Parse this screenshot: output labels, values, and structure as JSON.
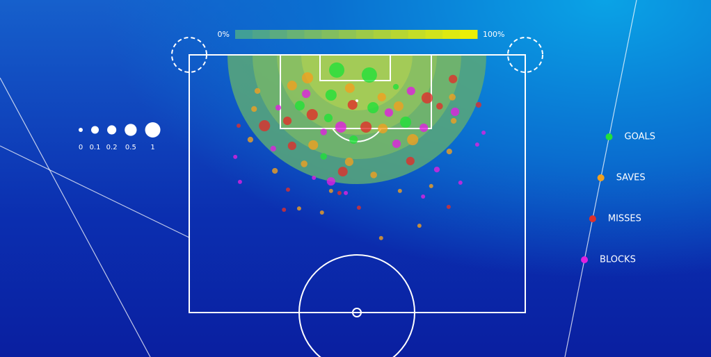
{
  "chart_data": {
    "type": "scatter",
    "xlim": [
      0,
      100
    ],
    "ylim": [
      0,
      100
    ],
    "colorbar": {
      "ticks": [
        {
          "value": 0,
          "label": "0%"
        },
        {
          "value": 100,
          "label": "100%"
        }
      ],
      "colors": [
        "#3a9c9c",
        "#f2f200"
      ]
    },
    "size_legend": [
      0,
      0.1,
      0.2,
      0.5,
      1
    ],
    "series": [
      {
        "name": "GOALS",
        "color": "#22e03a",
        "x": [
          43.9,
          53.6,
          42.2,
          32.9,
          54.7,
          64.4,
          41.4,
          61.5,
          40.0,
          48.9
        ],
        "y": [
          5.9,
          7.8,
          15.6,
          19.7,
          20.5,
          26.1,
          24.5,
          12.4,
          39.4,
          32.9
        ],
        "sizes": [
          1,
          1,
          0.4,
          0.25,
          0.4,
          0.4,
          0.15,
          0.02,
          0.05,
          0.15
        ]
      },
      {
        "name": "SAVES",
        "color": "#f0a020",
        "x": [
          35.2,
          47.8,
          30.6,
          57.3,
          62.3,
          57.6,
          36.9,
          66.5,
          20.3,
          19.3,
          78.3,
          47.6,
          34.2,
          18.2,
          25.5,
          54.9,
          62.7,
          57.1,
          68.5,
          42.2,
          32.7,
          78.7,
          77.4,
          72.0,
          39.5
        ],
        "y": [
          8.9,
          12.9,
          11.9,
          16.4,
          19.9,
          28.6,
          35.0,
          32.9,
          14.0,
          21.0,
          16.4,
          41.5,
          42.3,
          32.9,
          45.0,
          46.6,
          52.8,
          71.1,
          66.3,
          52.8,
          59.6,
          25.6,
          37.5,
          50.9,
          61.2
        ],
        "sizes": [
          0.4,
          0.25,
          0.25,
          0.15,
          0.25,
          0.25,
          0.25,
          0.4,
          0.02,
          0.02,
          0.05,
          0.15,
          0.05,
          0.02,
          0.02,
          0.05,
          0,
          0,
          0,
          0,
          0,
          0.02,
          0.02,
          0,
          0
        ]
      },
      {
        "name": "MISSES",
        "color": "#e0302a",
        "x": [
          78.5,
          70.8,
          48.6,
          52.6,
          36.6,
          22.4,
          29.2,
          30.6,
          45.7,
          74.5,
          65.8,
          86.1,
          14.7,
          29.4,
          28.2,
          50.5,
          77.2,
          44.7
        ],
        "y": [
          9.4,
          16.7,
          19.4,
          28.0,
          23.2,
          27.5,
          25.6,
          35.3,
          45.3,
          19.9,
          41.2,
          19.4,
          27.5,
          52.3,
          60.1,
          59.3,
          59.0,
          53.6
        ],
        "sizes": [
          0.15,
          0.4,
          0.25,
          0.4,
          0.4,
          0.4,
          0.15,
          0.15,
          0.25,
          0.05,
          0.15,
          0.02,
          0,
          0,
          0,
          0,
          0,
          0
        ]
      },
      {
        "name": "BLOCKS",
        "color": "#e020e0",
        "x": [
          34.8,
          59.4,
          45.1,
          66.0,
          69.8,
          79.1,
          26.5,
          61.7,
          42.2,
          25.0,
          40.0,
          73.7,
          13.7,
          15.1,
          46.6,
          69.6,
          80.7,
          85.7,
          87.6,
          37.1
        ],
        "y": [
          15.1,
          22.4,
          28.0,
          14.0,
          28.3,
          22.1,
          20.5,
          34.5,
          49.1,
          36.4,
          29.9,
          44.5,
          39.6,
          49.3,
          53.6,
          55.0,
          49.6,
          34.8,
          30.2,
          47.7
        ],
        "sizes": [
          0.15,
          0.15,
          0.4,
          0.15,
          0.15,
          0.15,
          0.02,
          0.15,
          0.15,
          0.02,
          0.05,
          0.02,
          0,
          0,
          0,
          0,
          0,
          0,
          0,
          0
        ]
      }
    ]
  }
}
